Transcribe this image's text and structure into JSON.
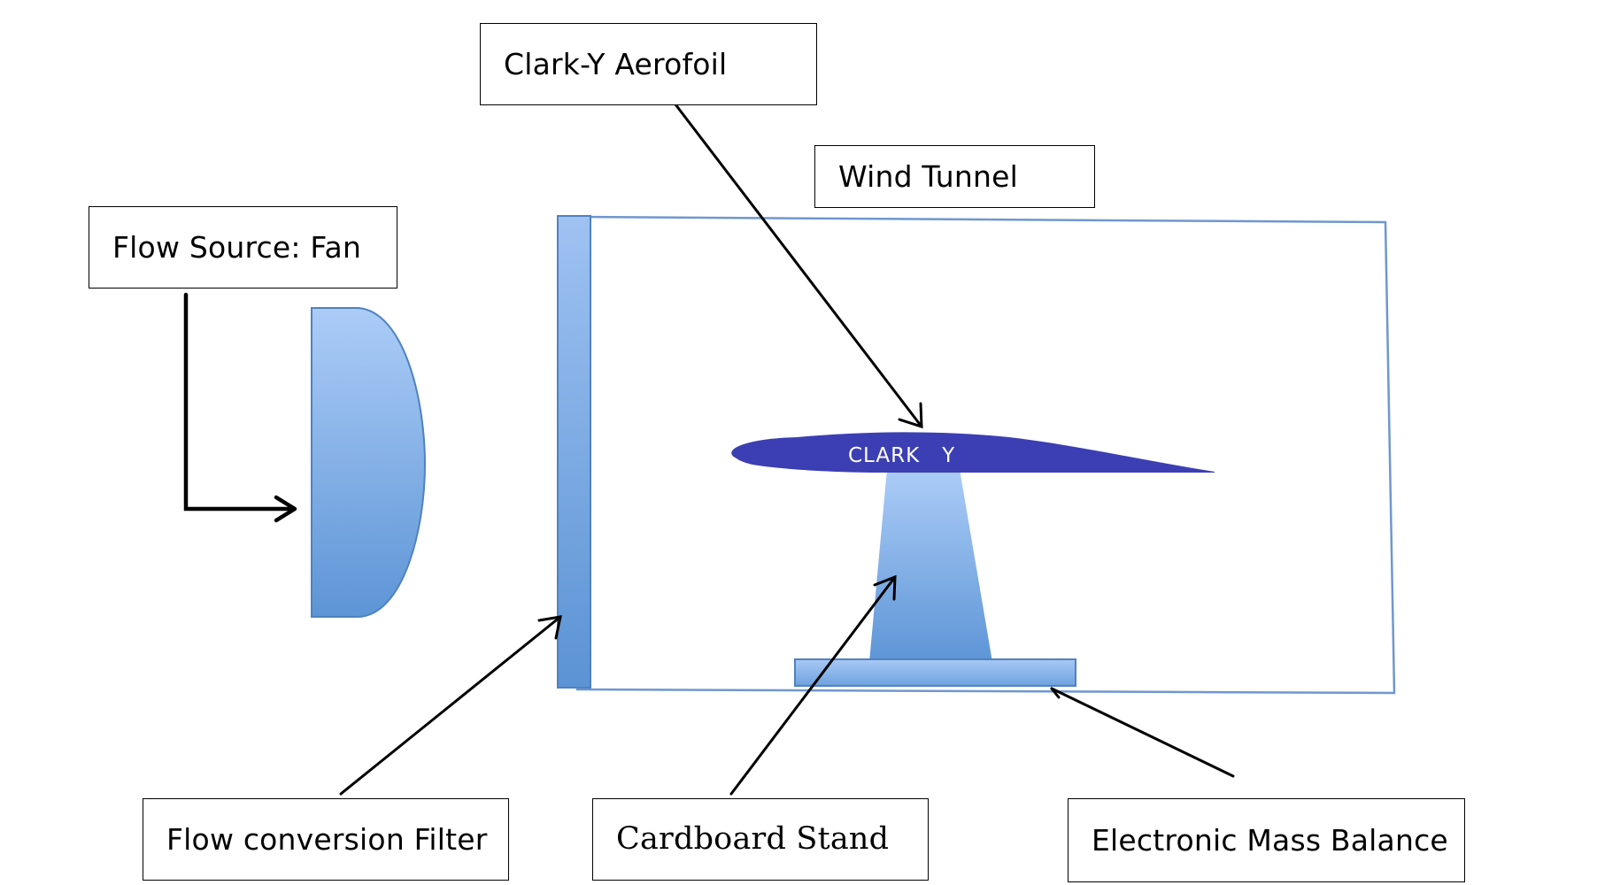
{
  "labels": {
    "clark_y_aerofoil": "Clark-Y Aerofoil",
    "wind_tunnel": "Wind Tunnel",
    "flow_source_fan": "Flow Source: Fan",
    "flow_conversion_filter": "Flow conversion Filter",
    "cardboard_stand": "Cardboard Stand",
    "electronic_mass_balance": "Electronic Mass Balance"
  },
  "aerofoil_text": "CLARK   Y",
  "colors": {
    "fan_light": "#a9c9f6",
    "fan_dark": "#5f97d8",
    "fan_stroke": "#4f82c0",
    "aerofoil_fill": "#3c3fb3",
    "tunnel_stroke": "#6f97cf",
    "label_border": "#000000",
    "arrow": "#000000"
  }
}
